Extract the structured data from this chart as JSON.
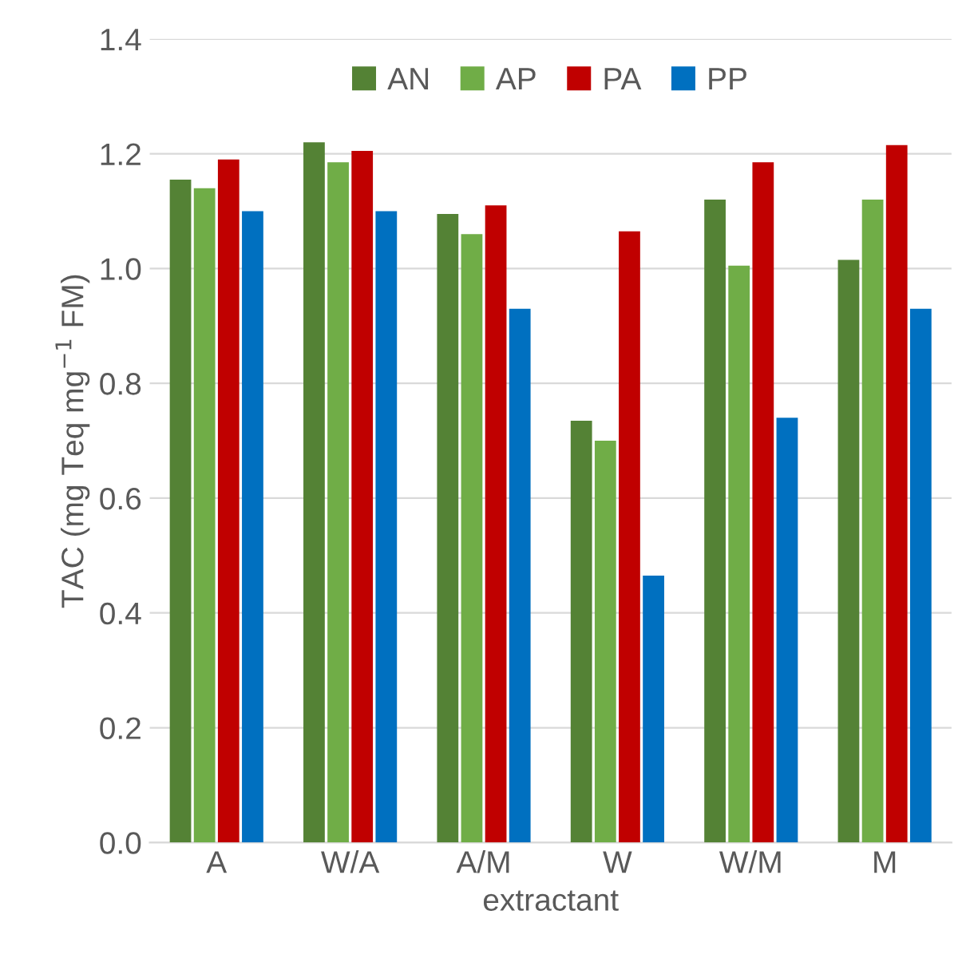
{
  "chart_data": {
    "type": "bar",
    "xlabel": "extractant",
    "ylabel": "TAC (mg Teq mg$^{−1}$ FM)",
    "categories": [
      "A",
      "W/A",
      "A/M",
      "W",
      "W/M",
      "M"
    ],
    "series": [
      {
        "name": "AN",
        "color": "#548235",
        "values": [
          1.155,
          1.22,
          1.095,
          0.735,
          1.12,
          1.015
        ]
      },
      {
        "name": "AP",
        "color": "#70ad47",
        "values": [
          1.14,
          1.185,
          1.06,
          0.7,
          1.005,
          1.12
        ]
      },
      {
        "name": "PA",
        "color": "#c00000",
        "values": [
          1.19,
          1.205,
          1.11,
          1.065,
          1.185,
          1.215
        ]
      },
      {
        "name": "PP",
        "color": "#0070c0",
        "values": [
          1.1,
          1.1,
          0.93,
          0.465,
          0.74,
          0.93
        ]
      }
    ],
    "ylim": [
      0,
      1.4
    ],
    "yticks": [
      {
        "value": 0,
        "label": "0.0"
      },
      {
        "value": 0.2,
        "label": "0.2"
      },
      {
        "value": 0.4,
        "label": "0.4"
      },
      {
        "value": 0.6,
        "label": "0.6"
      },
      {
        "value": 0.8,
        "label": "0.8"
      },
      {
        "value": 1.0,
        "label": "1.0"
      },
      {
        "value": 1.2,
        "label": "1.2"
      },
      {
        "value": 1.4,
        "label": "1.4"
      }
    ],
    "grid": "y",
    "legend": "top"
  }
}
